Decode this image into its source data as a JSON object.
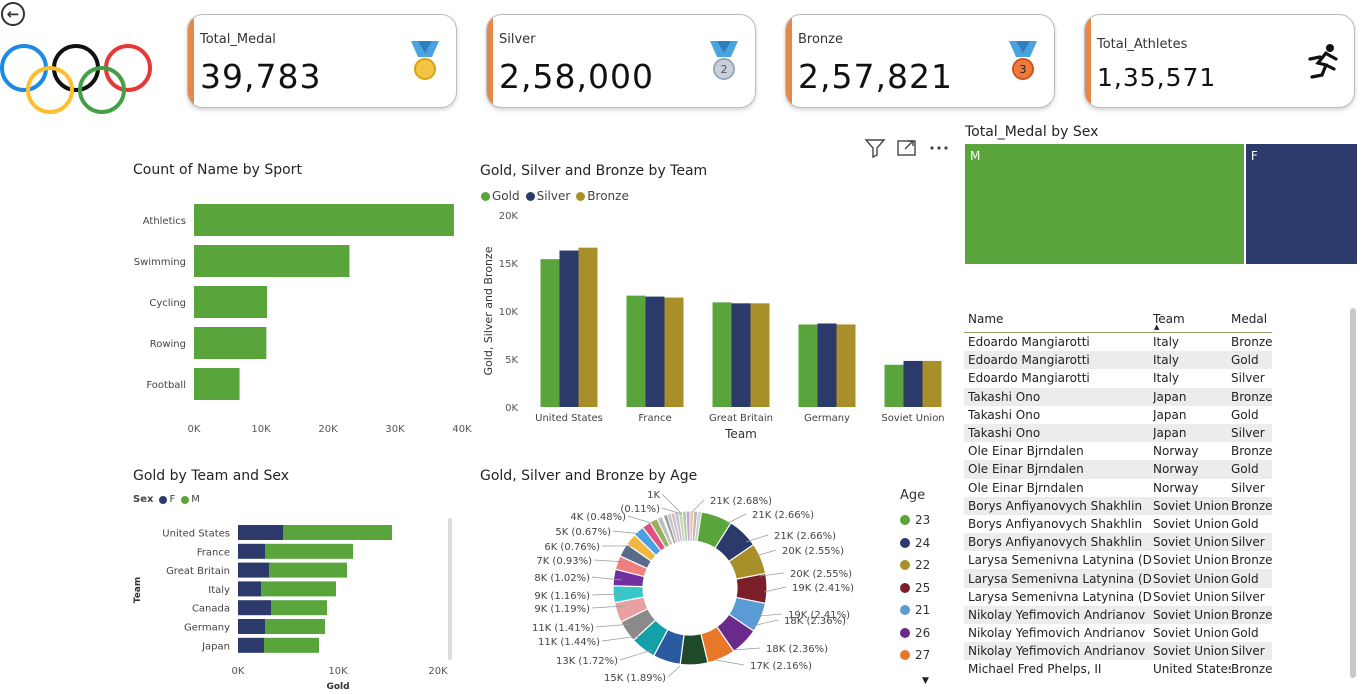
{
  "kpis": [
    {
      "label": "Total_Medal",
      "value": "39,783",
      "icon": "gold-medal-icon"
    },
    {
      "label": "Silver",
      "value": "2,58,000",
      "icon": "silver-medal-icon",
      "badge": "2"
    },
    {
      "label": "Bronze",
      "value": "2,57,821",
      "icon": "bronze-medal-icon",
      "badge": "3"
    },
    {
      "label": "Total_Athletes",
      "value": "1,35,571",
      "icon": "runner-icon"
    }
  ],
  "titles": {
    "sport": "Count of Name by Sport",
    "team_medals": "Gold, Silver and Bronze by Team",
    "sex_tree": "Total_Medal by Sex",
    "gold_team_sex": "Gold by Team and Sex",
    "age": "Gold, Silver and Bronze by Age"
  },
  "colors": {
    "green": "#5aa43c",
    "navy": "#2b3a6b",
    "gold": "#a98f2a",
    "orange": "#e8874a"
  },
  "chart_sport": {
    "type": "bar",
    "categories": [
      "Athletics",
      "Swimming",
      "Cycling",
      "Rowing",
      "Football"
    ],
    "values": [
      38800,
      23200,
      10900,
      10800,
      6800
    ],
    "xlim": [
      0,
      40000
    ],
    "ticks": [
      "0K",
      "10K",
      "20K",
      "30K",
      "40K"
    ]
  },
  "chart_team": {
    "type": "bar",
    "categories": [
      "United States",
      "France",
      "Great Britain",
      "Germany",
      "Soviet Union"
    ],
    "series": [
      {
        "name": "Gold",
        "values": [
          15400,
          11600,
          10900,
          8600,
          4400
        ]
      },
      {
        "name": "Silver",
        "values": [
          16300,
          11500,
          10800,
          8700,
          4800
        ]
      },
      {
        "name": "Bronze",
        "values": [
          16600,
          11400,
          10800,
          8600,
          4800
        ]
      }
    ],
    "ylim": [
      0,
      20000
    ],
    "yticks": [
      "0K",
      "5K",
      "10K",
      "15K",
      "20K"
    ],
    "ylabel": "Gold, Silver and Bronze",
    "xlabel": "Team"
  },
  "chart_sex": {
    "type": "treemap",
    "categories": [
      "M",
      "F"
    ],
    "values": [
      28500,
      11283
    ]
  },
  "chart_gold_sex": {
    "type": "bar",
    "legend_title": "Sex",
    "series_names": [
      "F",
      "M"
    ],
    "categories": [
      "United States",
      "France",
      "Great Britain",
      "Italy",
      "Canada",
      "Germany",
      "Japan"
    ],
    "F": [
      4500,
      2700,
      3100,
      2300,
      3300,
      2700,
      2600
    ],
    "M": [
      10900,
      8800,
      7800,
      7500,
      5600,
      6000,
      5500
    ],
    "xlim": [
      0,
      20000
    ],
    "ticks": [
      "0K",
      "10K",
      "20K"
    ],
    "ylabel": "Team",
    "xlabel": "Gold"
  },
  "chart_age": {
    "type": "pie",
    "legend_title": "Age",
    "legend": [
      {
        "label": "23",
        "color": "#5aa43c"
      },
      {
        "label": "24",
        "color": "#2b3a6b"
      },
      {
        "label": "22",
        "color": "#a98f2a"
      },
      {
        "label": "25",
        "color": "#7b1f2a"
      },
      {
        "label": "21",
        "color": "#5a9bd5"
      },
      {
        "label": "26",
        "color": "#6a2a8a"
      },
      {
        "label": "27",
        "color": "#e8772a"
      }
    ],
    "labels_right": [
      "21K (2.68%)",
      "21K (2.66%)",
      "21K (2.66%)",
      "20K (2.55%)",
      "20K (2.55%)",
      "19K (2.41%)",
      "19K (2.41%)",
      "18K (2.36%)",
      "18K (2.36%)",
      "17K (2.16%)"
    ],
    "labels_left": [
      "1K",
      "(0.11%)",
      "4K (0.48%)",
      "5K (0.67%)",
      "6K (0.76%)",
      "7K (0.93%)",
      "8K (1.02%)",
      "9K (1.16%)",
      "9K (1.19%)",
      "11K (1.41%)",
      "11K (1.44%)",
      "13K (1.72%)",
      "15K (1.89%)"
    ],
    "slices": [
      {
        "value": 2.68,
        "color": "#5aa43c"
      },
      {
        "value": 2.66,
        "color": "#2b3a6b"
      },
      {
        "value": 2.66,
        "color": "#a98f2a"
      },
      {
        "value": 2.55,
        "color": "#7b1f2a"
      },
      {
        "value": 2.55,
        "color": "#5a9bd5"
      },
      {
        "value": 2.41,
        "color": "#6a2a8a"
      },
      {
        "value": 2.41,
        "color": "#e8772a"
      },
      {
        "value": 2.36,
        "color": "#1f4a2a"
      },
      {
        "value": 2.36,
        "color": "#2a5aa0"
      },
      {
        "value": 2.16,
        "color": "#14a0a8"
      },
      {
        "value": 1.89,
        "color": "#8a8a8a"
      },
      {
        "value": 1.72,
        "color": "#e8a0a0"
      },
      {
        "value": 1.44,
        "color": "#34c8c8"
      },
      {
        "value": 1.41,
        "color": "#7030a0"
      },
      {
        "value": 1.19,
        "color": "#f08080"
      },
      {
        "value": 1.16,
        "color": "#5a6b8a"
      },
      {
        "value": 1.02,
        "color": "#f0b840"
      },
      {
        "value": 0.93,
        "color": "#4aa0e0"
      },
      {
        "value": 0.76,
        "color": "#e05080"
      },
      {
        "value": 0.67,
        "color": "#9ab060"
      },
      {
        "value": 0.48,
        "color": "#c0c0c0"
      },
      {
        "value": 0.11,
        "color": "#d0d0d0"
      }
    ]
  },
  "table": {
    "headers": [
      "Name",
      "Team",
      "Medal"
    ],
    "rows": [
      [
        "Edoardo Mangiarotti",
        "Italy",
        "Bronze"
      ],
      [
        "Edoardo Mangiarotti",
        "Italy",
        "Gold"
      ],
      [
        "Edoardo Mangiarotti",
        "Italy",
        "Silver"
      ],
      [
        "Takashi Ono",
        "Japan",
        "Bronze"
      ],
      [
        "Takashi Ono",
        "Japan",
        "Gold"
      ],
      [
        "Takashi Ono",
        "Japan",
        "Silver"
      ],
      [
        "Ole Einar Bjrndalen",
        "Norway",
        "Bronze"
      ],
      [
        "Ole Einar Bjrndalen",
        "Norway",
        "Gold"
      ],
      [
        "Ole Einar Bjrndalen",
        "Norway",
        "Silver"
      ],
      [
        "Borys Anfiyanovych Shakhlin",
        "Soviet Union",
        "Bronze"
      ],
      [
        "Borys Anfiyanovych Shakhlin",
        "Soviet Union",
        "Gold"
      ],
      [
        "Borys Anfiyanovych Shakhlin",
        "Soviet Union",
        "Silver"
      ],
      [
        "Larysa Semenivna Latynina (Diriy-)",
        "Soviet Union",
        "Bronze"
      ],
      [
        "Larysa Semenivna Latynina (Diriy-)",
        "Soviet Union",
        "Gold"
      ],
      [
        "Larysa Semenivna Latynina (Diriy-)",
        "Soviet Union",
        "Silver"
      ],
      [
        "Nikolay Yefimovich Andrianov",
        "Soviet Union",
        "Bronze"
      ],
      [
        "Nikolay Yefimovich Andrianov",
        "Soviet Union",
        "Gold"
      ],
      [
        "Nikolay Yefimovich Andrianov",
        "Soviet Union",
        "Silver"
      ],
      [
        "Michael Fred Phelps, II",
        "United States",
        "Bronze"
      ]
    ]
  }
}
